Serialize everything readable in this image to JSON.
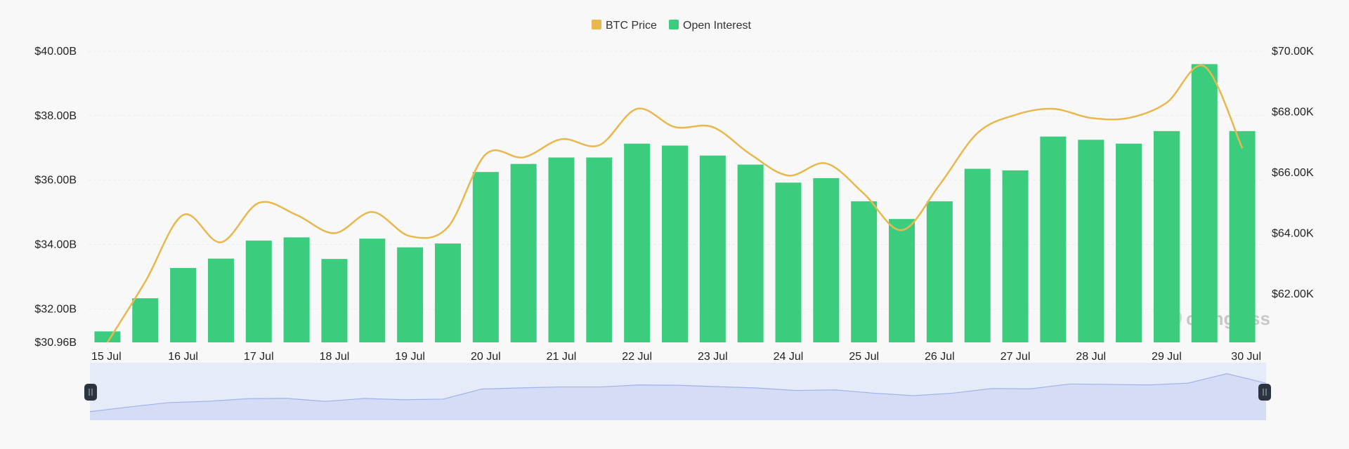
{
  "legend": {
    "btc_price_label": "BTC Price",
    "open_interest_label": "Open Interest"
  },
  "watermark": {
    "text": "coinglass"
  },
  "colors": {
    "open_interest": "#3bcc7e",
    "btc_price": "#e8b84f",
    "grid": "#ececec",
    "slider_bg": "#e6ebfa",
    "slider_area": "#d5dcf6",
    "slider_line": "#9fb3ea",
    "handle": "#2c3440"
  },
  "chart_data": {
    "type": "bar",
    "x_tick_labels": [
      "15 Jul",
      "16 Jul",
      "17 Jul",
      "18 Jul",
      "19 Jul",
      "20 Jul",
      "21 Jul",
      "22 Jul",
      "23 Jul",
      "24 Jul",
      "25 Jul",
      "26 Jul",
      "27 Jul",
      "28 Jul",
      "29 Jul",
      "30 Jul"
    ],
    "series": [
      {
        "name": "Open Interest",
        "type": "bar",
        "axis": "left",
        "values": [
          31.3,
          32.33,
          33.27,
          33.56,
          34.12,
          34.22,
          33.55,
          34.18,
          33.91,
          34.03,
          36.25,
          36.5,
          36.7,
          36.7,
          37.13,
          37.07,
          36.76,
          36.48,
          35.92,
          36.06,
          35.34,
          34.79,
          35.34,
          36.35,
          36.3,
          37.35,
          37.25,
          37.13,
          37.52,
          39.6,
          37.52
        ]
      },
      {
        "name": "BTC Price",
        "type": "line",
        "axis": "right",
        "values": [
          60.4,
          62.4,
          64.6,
          63.7,
          65.0,
          64.6,
          64.0,
          64.7,
          63.9,
          64.2,
          66.6,
          66.5,
          67.1,
          66.9,
          68.1,
          67.5,
          67.5,
          66.6,
          65.9,
          66.3,
          65.3,
          64.1,
          65.6,
          67.3,
          67.9,
          68.1,
          67.8,
          67.8,
          68.3,
          69.5,
          66.8
        ]
      }
    ],
    "y_left": {
      "ticks": [
        "$40.00B",
        "$38.00B",
        "$36.00B",
        "$34.00B",
        "$32.00B",
        "$30.96B"
      ],
      "range": [
        30.96,
        40.0
      ]
    },
    "y_right": {
      "ticks": [
        "$70.00K",
        "$68.00K",
        "$66.00K",
        "$64.00K",
        "$62.00K"
      ],
      "range": [
        60.4,
        70.0
      ]
    },
    "grid": true,
    "legend_position": "top-center"
  }
}
